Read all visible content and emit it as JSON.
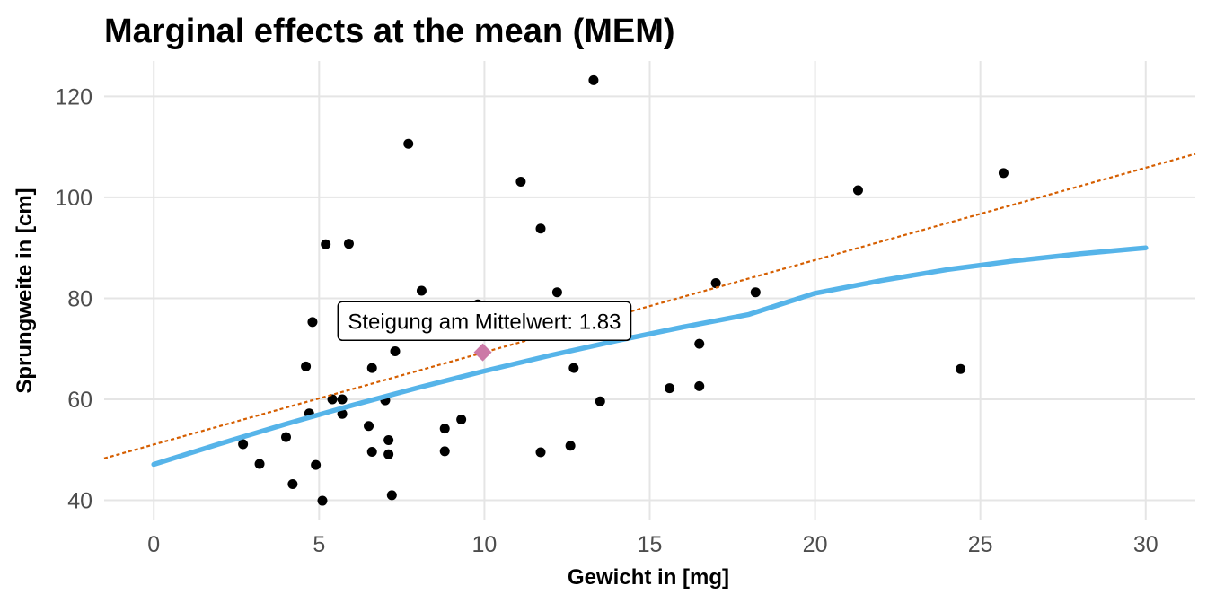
{
  "chart_data": {
    "type": "scatter",
    "title": "Marginal effects at the mean (MEM)",
    "xlabel": "Gewicht in [mg]",
    "ylabel": "Sprungweite in [cm]",
    "xlim": [
      -1.5,
      31.5
    ],
    "ylim": [
      36,
      127
    ],
    "x_ticks": [
      0,
      5,
      10,
      15,
      20,
      25,
      30
    ],
    "y_ticks": [
      40,
      60,
      80,
      100,
      120
    ],
    "grid": true,
    "legend": "none",
    "points": [
      {
        "x": 2.7,
        "y": 51.1
      },
      {
        "x": 3.2,
        "y": 47.2
      },
      {
        "x": 4.0,
        "y": 52.5
      },
      {
        "x": 4.2,
        "y": 43.2
      },
      {
        "x": 4.6,
        "y": 66.5
      },
      {
        "x": 4.7,
        "y": 57.2
      },
      {
        "x": 4.8,
        "y": 75.3
      },
      {
        "x": 4.9,
        "y": 47.0
      },
      {
        "x": 5.1,
        "y": 39.9
      },
      {
        "x": 5.2,
        "y": 90.7
      },
      {
        "x": 5.4,
        "y": 60.0
      },
      {
        "x": 5.7,
        "y": 57.1
      },
      {
        "x": 5.7,
        "y": 60.0
      },
      {
        "x": 5.9,
        "y": 90.8
      },
      {
        "x": 6.5,
        "y": 54.7
      },
      {
        "x": 6.6,
        "y": 66.2
      },
      {
        "x": 6.6,
        "y": 49.6
      },
      {
        "x": 7.0,
        "y": 59.8
      },
      {
        "x": 7.1,
        "y": 51.9
      },
      {
        "x": 7.1,
        "y": 49.1
      },
      {
        "x": 7.2,
        "y": 41.0
      },
      {
        "x": 7.3,
        "y": 69.5
      },
      {
        "x": 7.7,
        "y": 110.6
      },
      {
        "x": 8.1,
        "y": 81.5
      },
      {
        "x": 8.8,
        "y": 54.2
      },
      {
        "x": 8.8,
        "y": 49.7
      },
      {
        "x": 9.3,
        "y": 56.0
      },
      {
        "x": 9.8,
        "y": 78.8
      },
      {
        "x": 11.1,
        "y": 103.1
      },
      {
        "x": 11.7,
        "y": 93.8
      },
      {
        "x": 11.7,
        "y": 49.5
      },
      {
        "x": 12.2,
        "y": 81.2
      },
      {
        "x": 12.6,
        "y": 50.8
      },
      {
        "x": 12.7,
        "y": 66.2
      },
      {
        "x": 13.3,
        "y": 123.2
      },
      {
        "x": 13.5,
        "y": 59.6
      },
      {
        "x": 15.6,
        "y": 62.2
      },
      {
        "x": 16.5,
        "y": 71.0
      },
      {
        "x": 16.5,
        "y": 62.6
      },
      {
        "x": 17.0,
        "y": 83.0
      },
      {
        "x": 18.2,
        "y": 81.2
      },
      {
        "x": 21.3,
        "y": 101.4
      },
      {
        "x": 24.4,
        "y": 66.0
      },
      {
        "x": 25.7,
        "y": 104.8
      }
    ],
    "fit_curve": {
      "x": [
        0,
        2,
        4,
        6,
        8,
        10,
        12,
        14,
        16,
        18,
        20,
        22,
        24,
        26,
        28,
        30
      ],
      "y": [
        47.1,
        51.2,
        55.1,
        58.8,
        62.3,
        65.6,
        68.7,
        71.6,
        74.3,
        76.8,
        81.0,
        83.5,
        85.7,
        87.4,
        88.8,
        90.0
      ]
    },
    "tangent_line": {
      "x": [
        -1.5,
        31.5
      ],
      "y": [
        48.3,
        108.6
      ]
    },
    "mean_point": {
      "x": 9.95,
      "y": 69.3
    },
    "annotation": {
      "text": "Steigung am Mittelwert: 1.83",
      "x": 10.0,
      "y": 75.5
    },
    "colors": {
      "points": "#000000",
      "fit_curve": "#56B4E9",
      "tangent_line": "#D55E00",
      "mean_point": "#CC79A7",
      "grid": "#E5E5E5"
    }
  }
}
